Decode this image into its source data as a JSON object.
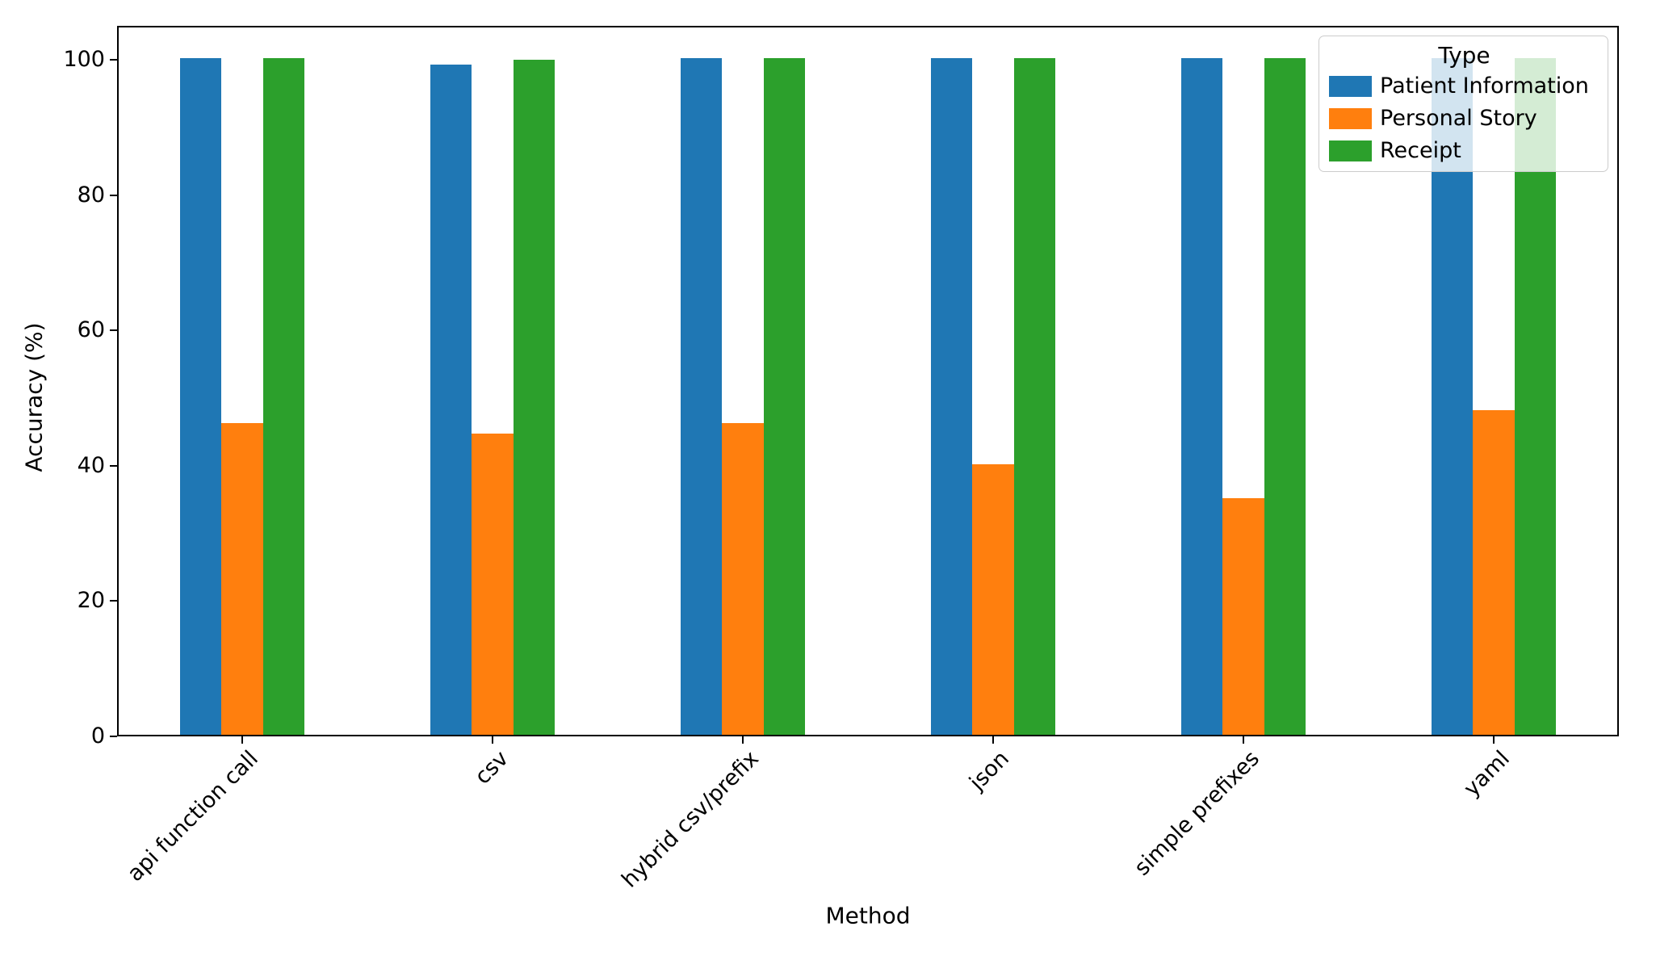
{
  "chart_data": {
    "type": "bar",
    "title": "",
    "xlabel": "Method",
    "ylabel": "Accuracy (%)",
    "categories": [
      "api function call",
      "csv",
      "hybrid csv/prefix",
      "json",
      "simple prefixes",
      "yaml"
    ],
    "series": [
      {
        "name": "Patient Information",
        "color": "#1f77b4",
        "values": [
          100,
          99,
          100,
          100,
          100,
          100
        ]
      },
      {
        "name": "Personal Story",
        "color": "#ff7f0e",
        "values": [
          46,
          44.5,
          46,
          40,
          35,
          48
        ]
      },
      {
        "name": "Receipt",
        "color": "#2ca02c",
        "values": [
          100,
          99.8,
          100,
          100,
          100,
          100
        ]
      }
    ],
    "legend": {
      "title": "Type",
      "position": "upper right"
    },
    "ylim": [
      0,
      105
    ],
    "yticks": [
      0,
      20,
      40,
      60,
      80,
      100
    ],
    "grid": false
  }
}
